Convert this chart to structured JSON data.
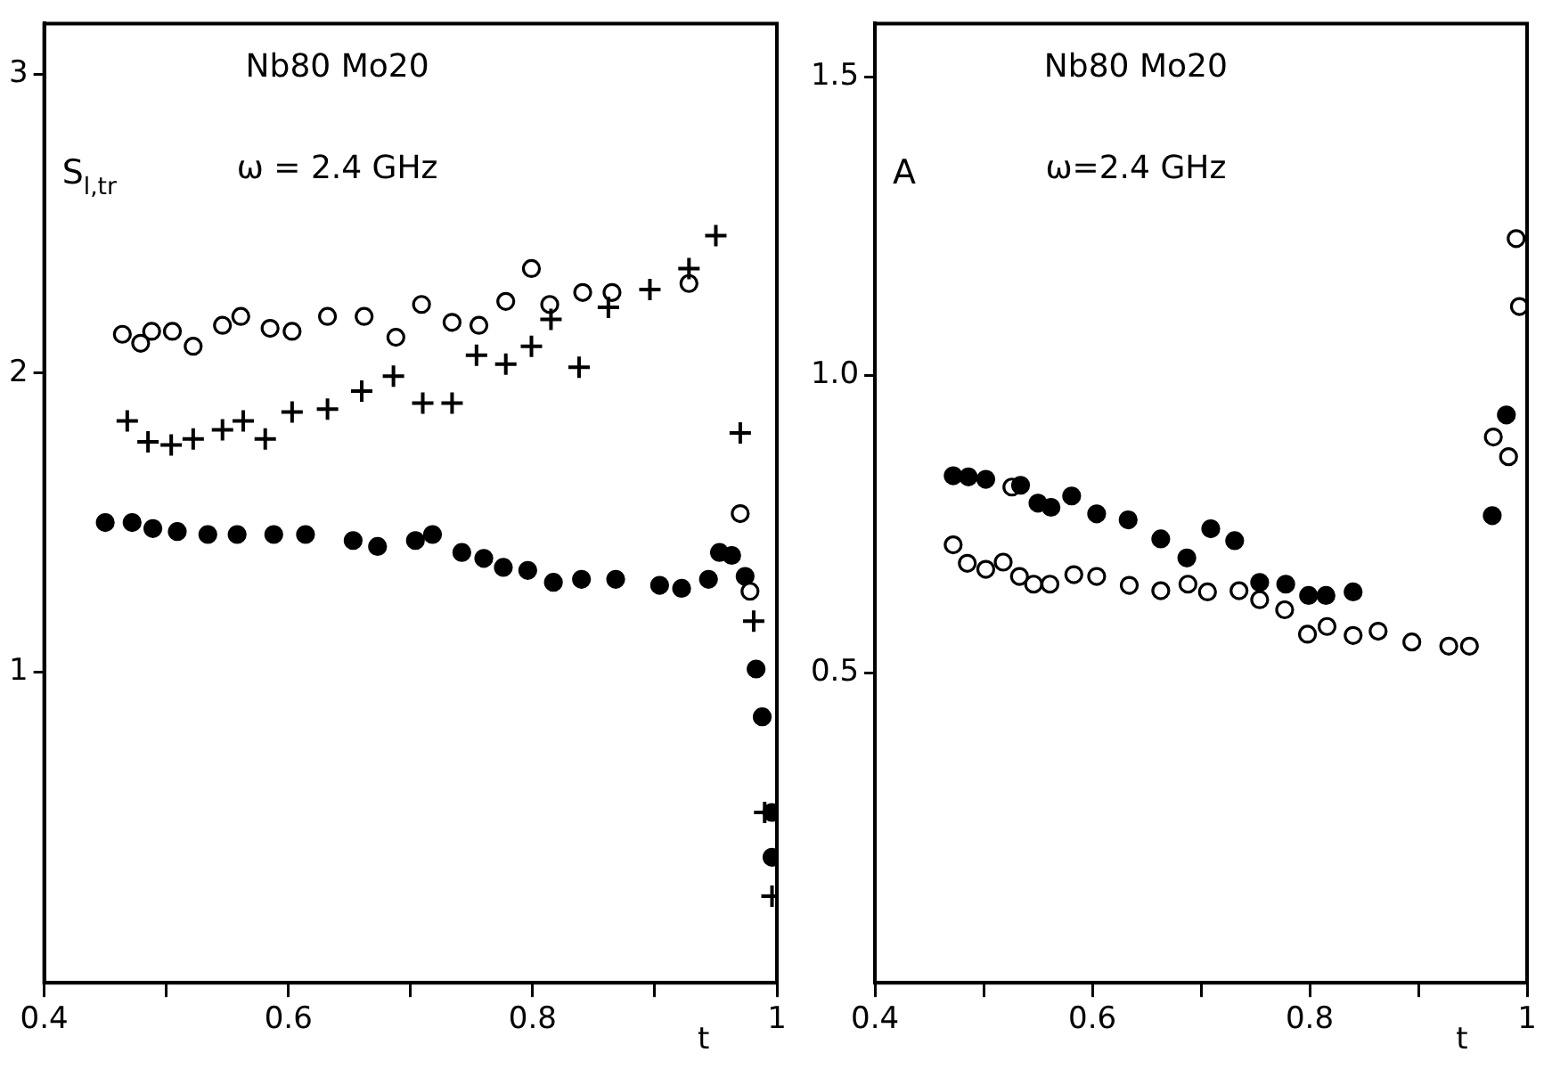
{
  "chart_data": [
    {
      "type": "scatter",
      "title": "Nb80 Mo20",
      "annotations": [
        "ω = 2.4 GHz"
      ],
      "ylabel": "S$_{l,tr}$",
      "xlabel": "t",
      "xlim": [
        0.4,
        1.0
      ],
      "xticks": [
        0.4,
        {
          "value": 0.5,
          "label": null
        },
        0.6,
        {
          "value": 0.7,
          "label": null
        },
        0.8,
        {
          "value": 0.9,
          "label": null
        },
        1
      ],
      "ylim": [
        -0.04,
        3.17
      ],
      "yticks": [
        1,
        2,
        3
      ],
      "series": [
        {
          "color": "#000000",
          "marker": "circle",
          "x": [
            0.464,
            0.479,
            0.488,
            0.505,
            0.522,
            0.546,
            0.561,
            0.585,
            0.603,
            0.632,
            0.662,
            0.688,
            0.709,
            0.734,
            0.756,
            0.778,
            0.799,
            0.814,
            0.841,
            0.865,
            0.928,
            0.97,
            0.978
          ],
          "values": [
            2.13,
            2.1,
            2.14,
            2.14,
            2.09,
            2.16,
            2.19,
            2.15,
            2.14,
            2.19,
            2.19,
            2.12,
            2.23,
            2.17,
            2.16,
            2.24,
            2.35,
            2.23,
            2.27,
            2.27,
            2.3,
            1.53,
            1.27
          ]
        },
        {
          "color": "#000000",
          "marker": "cross",
          "x": [
            0.468,
            0.485,
            0.504,
            0.522,
            0.546,
            0.563,
            0.581,
            0.603,
            0.632,
            0.66,
            0.686,
            0.71,
            0.734,
            0.754,
            0.778,
            0.799,
            0.815,
            0.838,
            0.862,
            0.896,
            0.928,
            0.95,
            0.97,
            0.981,
            0.99,
            0.996
          ],
          "values": [
            1.84,
            1.77,
            1.76,
            1.78,
            1.81,
            1.84,
            1.78,
            1.87,
            1.88,
            1.94,
            1.99,
            1.9,
            1.9,
            2.06,
            2.03,
            2.09,
            2.18,
            2.02,
            2.22,
            2.28,
            2.35,
            2.46,
            1.8,
            1.17,
            0.53,
            0.25
          ]
        },
        {
          "color": "#000000",
          "marker": "circle",
          "x": [
            0.45,
            0.472,
            0.489,
            0.509,
            0.534,
            0.558,
            0.588,
            0.614,
            0.653,
            0.673,
            0.704,
            0.718,
            0.742,
            0.76,
            0.776,
            0.796,
            0.817,
            0.84,
            0.868,
            0.904,
            0.922,
            0.944,
            0.953,
            0.963,
            0.974,
            0.983,
            0.988,
            0.996,
            0.996
          ],
          "values": [
            1.5,
            1.5,
            1.48,
            1.47,
            1.46,
            1.46,
            1.46,
            1.46,
            1.44,
            1.42,
            1.44,
            1.46,
            1.4,
            1.38,
            1.35,
            1.34,
            1.3,
            1.31,
            1.31,
            1.29,
            1.28,
            1.31,
            1.4,
            1.39,
            1.32,
            1.01,
            0.85,
            0.53,
            0.38
          ]
        }
      ]
    },
    {
      "type": "scatter",
      "title": "Nb80 Mo20",
      "annotations": [
        "ω=2.4 GHz"
      ],
      "ylabel": "A",
      "xlabel": "t",
      "xlim": [
        0.4,
        1.0
      ],
      "xticks": [
        0.4,
        {
          "value": 0.5,
          "label": null
        },
        0.6,
        {
          "value": 0.7,
          "label": null
        },
        0.8,
        {
          "value": 0.9,
          "label": null
        },
        1
      ],
      "ylim": [
        -0.02,
        1.59
      ],
      "yticks": [
        {
          "value": 0.5,
          "label": "0.5"
        },
        {
          "value": 1,
          "label": "1.0"
        },
        1.5
      ],
      "series": [
        {
          "color": "#000000",
          "marker": "circle",
          "x": [
            0.472,
            0.486,
            0.502,
            0.534,
            0.55,
            0.562,
            0.581,
            0.604,
            0.633,
            0.663,
            0.687,
            0.709,
            0.731,
            0.754,
            0.778,
            0.799,
            0.815,
            0.84,
            0.968,
            0.981
          ],
          "values": [
            0.831,
            0.829,
            0.825,
            0.815,
            0.785,
            0.778,
            0.797,
            0.767,
            0.757,
            0.725,
            0.693,
            0.742,
            0.722,
            0.652,
            0.649,
            0.63,
            0.63,
            0.636,
            0.764,
            0.933
          ]
        },
        {
          "color": "#000000",
          "marker": "circle",
          "x": [
            0.472,
            0.485,
            0.502,
            0.518,
            0.526,
            0.533,
            0.546,
            0.561,
            0.583,
            0.604,
            0.634,
            0.663,
            0.688,
            0.706,
            0.735,
            0.754,
            0.777,
            0.798,
            0.816,
            0.84,
            0.863,
            0.894,
            0.928,
            0.947,
            0.969,
            0.983,
            0.99,
            0.993
          ],
          "values": [
            0.715,
            0.684,
            0.674,
            0.686,
            0.812,
            0.662,
            0.649,
            0.649,
            0.665,
            0.662,
            0.647,
            0.638,
            0.649,
            0.636,
            0.638,
            0.623,
            0.606,
            0.565,
            0.578,
            0.563,
            0.57,
            0.552,
            0.545,
            0.545,
            0.896,
            0.863,
            1.229,
            1.115
          ]
        }
      ]
    }
  ]
}
